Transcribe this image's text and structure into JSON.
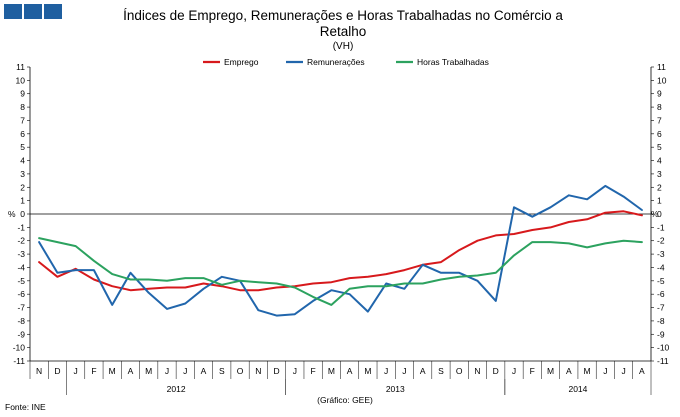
{
  "chart_data": {
    "type": "line",
    "title_lines": [
      "Índices de Emprego, Remunerações e Horas Trabalhadas no Comércio a",
      "Retalho"
    ],
    "subtitle": "(VH)",
    "y_unit": "%",
    "ylim": [
      -11,
      11
    ],
    "yticks": [
      "11",
      "10",
      "9",
      "8",
      "7",
      "6",
      "5",
      "4",
      "3",
      "2",
      "1",
      "0",
      "-1",
      "-2",
      "-3",
      "-4",
      "-5",
      "-6",
      "-7",
      "-8",
      "-9",
      "-10",
      "-11"
    ],
    "x": [
      "N",
      "D",
      "J",
      "F",
      "M",
      "A",
      "M",
      "J",
      "J",
      "A",
      "S",
      "O",
      "N",
      "D",
      "J",
      "F",
      "M",
      "A",
      "M",
      "J",
      "J",
      "A",
      "S",
      "O",
      "N",
      "D",
      "J",
      "F",
      "M",
      "A",
      "M",
      "J",
      "J",
      "A"
    ],
    "years": [
      {
        "label": "2012",
        "start": 2,
        "end": 13
      },
      {
        "label": "2013",
        "start": 14,
        "end": 25
      },
      {
        "label": "2014",
        "start": 26,
        "end": 33
      }
    ],
    "grid": false,
    "legend_position": "top",
    "series": [
      {
        "name": "Emprego",
        "color": "#d7191c",
        "values": [
          -3.6,
          -4.7,
          -4.1,
          -4.9,
          -5.4,
          -5.7,
          -5.6,
          -5.5,
          -5.5,
          -5.2,
          -5.4,
          -5.7,
          -5.7,
          -5.5,
          -5.4,
          -5.2,
          -5.1,
          -4.8,
          -4.7,
          -4.5,
          -4.2,
          -3.8,
          -3.6,
          -2.7,
          -2.0,
          -1.6,
          -1.5,
          -1.2,
          -1.0,
          -0.6,
          -0.4,
          0.1,
          0.2,
          -0.1
        ]
      },
      {
        "name": "Remunerações",
        "color": "#2166ac",
        "values": [
          -2.1,
          -4.4,
          -4.2,
          -4.2,
          -6.8,
          -4.4,
          -5.9,
          -7.1,
          -6.7,
          -5.6,
          -4.7,
          -5.0,
          -7.2,
          -7.6,
          -7.5,
          -6.5,
          -5.7,
          -6.0,
          -7.3,
          -5.2,
          -5.6,
          -3.8,
          -4.4,
          -4.4,
          -5.0,
          -6.5,
          0.5,
          -0.2,
          0.5,
          1.4,
          1.1,
          2.1,
          1.3,
          0.3
        ]
      },
      {
        "name": "Horas Trabalhadas",
        "color": "#2ca25f",
        "values": [
          -1.8,
          -2.1,
          -2.4,
          -3.5,
          -4.5,
          -4.9,
          -4.9,
          -5.0,
          -4.8,
          -4.8,
          -5.3,
          -5.0,
          -5.1,
          -5.2,
          -5.5,
          -6.2,
          -6.8,
          -5.6,
          -5.4,
          -5.4,
          -5.2,
          -5.2,
          -4.9,
          -4.7,
          -4.6,
          -4.4,
          -3.1,
          -2.1,
          -2.1,
          -2.2,
          -2.5,
          -2.2,
          -2.0,
          -2.1
        ]
      }
    ],
    "footnote_left": "Fonte: INE",
    "footnote_center": "(Gráfico: GEE)"
  }
}
